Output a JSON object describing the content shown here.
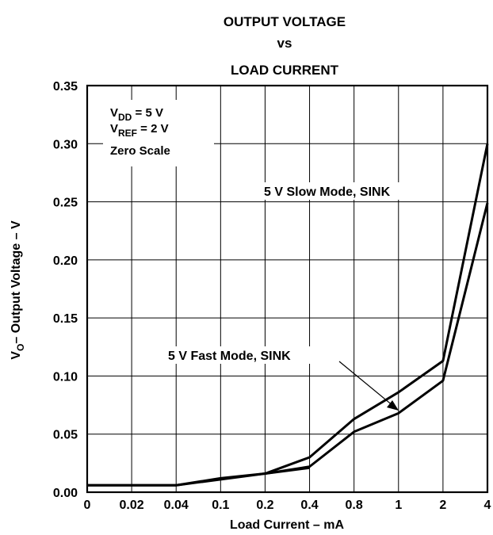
{
  "chart_data": {
    "type": "line",
    "title": [
      "OUTPUT VOLTAGE",
      "vs",
      "LOAD CURRENT"
    ],
    "xlabel": "Load Current – mA",
    "ylabel": {
      "main": "V",
      "sub": "O",
      "rest": "– Output Voltage – V"
    },
    "x_tick_labels": [
      "0",
      "0.02",
      "0.04",
      "0.1",
      "0.2",
      "0.4",
      "0.8",
      "1",
      "2",
      "4"
    ],
    "y_ticks": [
      0.0,
      0.05,
      0.1,
      0.15,
      0.2,
      0.25,
      0.3,
      0.35
    ],
    "y_tick_labels": [
      "0.00",
      "0.05",
      "0.10",
      "0.15",
      "0.20",
      "0.25",
      "0.30",
      "0.35"
    ],
    "ylim": [
      0,
      0.35
    ],
    "grid": true,
    "conditions": [
      {
        "main": "V",
        "sub": "DD",
        "rest": " = 5 V"
      },
      {
        "main": "V",
        "sub": "REF",
        "rest": " = 2 V"
      },
      {
        "main": "Zero Scale",
        "sub": "",
        "rest": ""
      }
    ],
    "series": [
      {
        "name": "5 V Slow Mode, SINK",
        "x": [
          "0",
          "0.02",
          "0.04",
          "0.1",
          "0.2",
          "0.4",
          "0.8",
          "1",
          "2",
          "4"
        ],
        "values": [
          0.006,
          0.006,
          0.006,
          0.011,
          0.016,
          0.022,
          0.052,
          0.068,
          0.096,
          0.249
        ]
      },
      {
        "name": "5 V Fast Mode, SINK",
        "x": [
          "0",
          "0.02",
          "0.04",
          "0.1",
          "0.2",
          "0.4",
          "0.8",
          "1",
          "2",
          "4"
        ],
        "values": [
          0.006,
          0.006,
          0.006,
          0.012,
          0.016,
          0.03,
          0.063,
          0.086,
          0.113,
          0.3
        ]
      }
    ],
    "extra_segment": {
      "from": {
        "x": "0.2",
        "y": 0.016
      },
      "to": {
        "x": "0.4",
        "y": 0.021
      }
    }
  }
}
